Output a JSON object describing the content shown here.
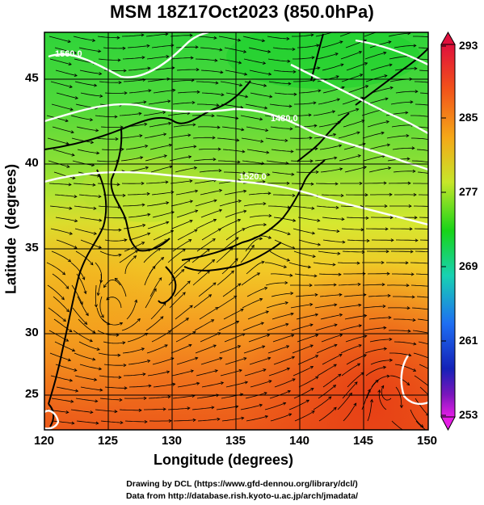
{
  "title": "MSM 18Z17Oct2023 (850.0hPa)",
  "x_axis": {
    "label": "Longitude (degrees)",
    "ticks": [
      "120",
      "125",
      "130",
      "135",
      "140",
      "145",
      "150"
    ]
  },
  "y_axis": {
    "label": "Latitude  (degrees)",
    "ticks": [
      "45",
      "40",
      "35",
      "30",
      "25"
    ]
  },
  "colorbar": {
    "labels": [
      "293",
      "285",
      "277",
      "269",
      "261",
      "253"
    ],
    "colors": [
      "#e0103c",
      "#f2531a",
      "#f5a818",
      "#c7e62a",
      "#18d418",
      "#18d2b2",
      "#1e6ef2",
      "#1422b8",
      "#7a16bc",
      "#e61ee6"
    ]
  },
  "contour_labels": [
    "1560.0",
    "1520.0",
    "1480.0"
  ],
  "credits": {
    "line1": "Drawing by DCL (https://www.gfd-dennou.org/library/dcl/)",
    "line2": "Data from http://database.rish.kyoto-u.ac.jp/arch/jmadata/"
  }
}
